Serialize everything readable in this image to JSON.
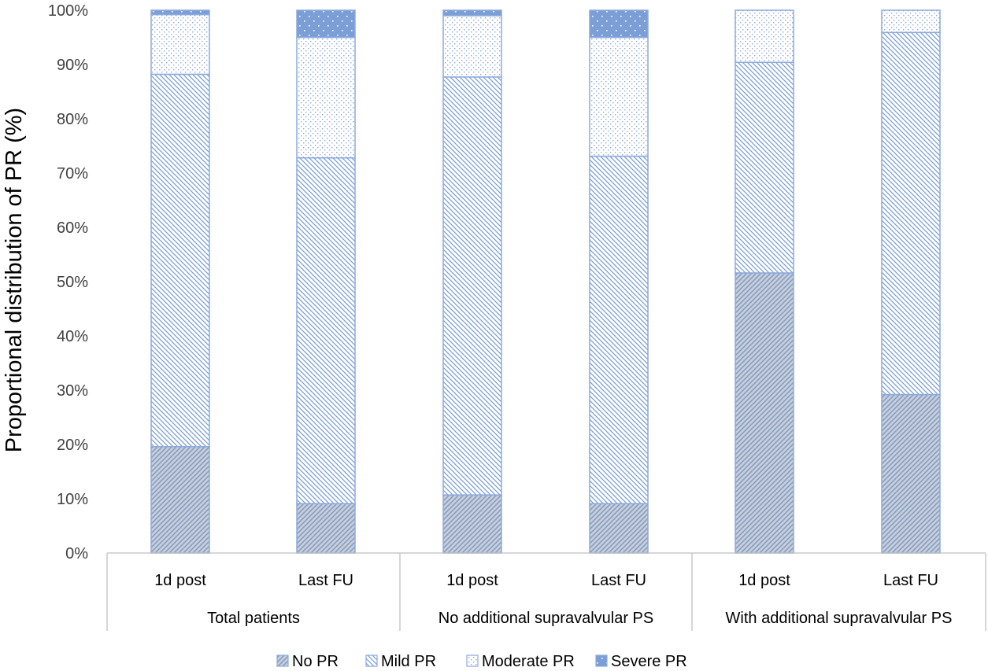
{
  "chart_data": {
    "type": "bar",
    "stacked": true,
    "title": "",
    "xlabel": "",
    "ylabel": "Proportional distribution of PR (%)",
    "ylim": [
      0,
      100
    ],
    "yticks": [
      "0%",
      "10%",
      "20%",
      "30%",
      "40%",
      "50%",
      "60%",
      "70%",
      "80%",
      "90%",
      "100%"
    ],
    "groups": [
      {
        "label": "Total patients",
        "bars": [
          "1d post",
          "Last FU"
        ]
      },
      {
        "label": "No additional supravalvular PS",
        "bars": [
          "1d post",
          "Last FU"
        ]
      },
      {
        "label": "With additional supravalvular PS",
        "bars": [
          "1d post",
          "Last FU"
        ]
      }
    ],
    "series": [
      {
        "name": "No PR",
        "pattern": "diagonal-dense",
        "values": [
          19.6,
          9.1,
          10.7,
          9.1,
          51.6,
          29.2
        ]
      },
      {
        "name": "Mild PR",
        "pattern": "diagonal-sparse",
        "values": [
          68.6,
          63.7,
          77.0,
          64.0,
          38.8,
          66.7
        ]
      },
      {
        "name": "Moderate PR",
        "pattern": "dotted",
        "values": [
          11.0,
          22.2,
          11.3,
          21.9,
          9.6,
          4.1
        ]
      },
      {
        "name": "Severe PR",
        "pattern": "solid-dots",
        "values": [
          0.8,
          5.0,
          1.0,
          5.0,
          0.0,
          0.0
        ]
      }
    ],
    "legend_position": "bottom",
    "colors": {
      "outline": "#8eaadb",
      "solid": "#7b9ed6",
      "hatch": "#8eaadb",
      "no_pr_bg": "#cfcfcf",
      "axis": "#bfbfbf"
    }
  }
}
